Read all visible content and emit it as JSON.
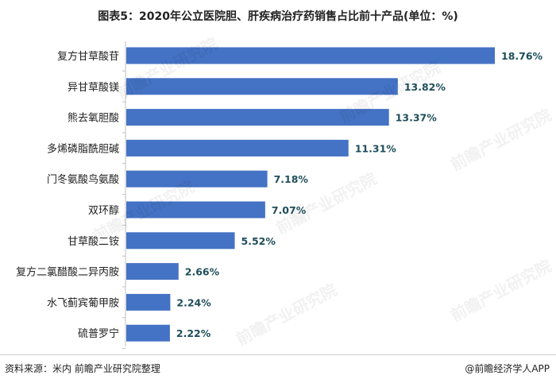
{
  "chart_data": {
    "type": "bar",
    "orientation": "horizontal",
    "title": "图表5：2020年公立医院胆、肝疾病治疗药销售占比前十产品(单位：%)",
    "categories": [
      "复方甘草酸苷",
      "异甘草酸镁",
      "熊去氧胆酸",
      "多烯磷脂酰胆碱",
      "门冬氨酸鸟氨酸",
      "双环醇",
      "甘草酸二铵",
      "复方二氯醋酸二异丙胺",
      "水飞蓟宾葡甲胺",
      "硫普罗宁"
    ],
    "values": [
      18.76,
      13.82,
      13.37,
      11.31,
      7.18,
      7.07,
      5.52,
      2.66,
      2.24,
      2.22
    ],
    "value_labels": [
      "18.76%",
      "13.82%",
      "13.37%",
      "11.31%",
      "7.18%",
      "7.07%",
      "5.52%",
      "2.66%",
      "2.24%",
      "2.22%"
    ],
    "xlim": [
      0,
      19
    ],
    "bar_color": "#4472C4",
    "label_color": "#1F4E5A",
    "grid": false,
    "legend": "none"
  },
  "footer": {
    "source": "资料来源：米内 前瞻产业研究院整理",
    "brand": "@前瞻经济学人APP"
  },
  "watermark": "前瞻产业研究院"
}
